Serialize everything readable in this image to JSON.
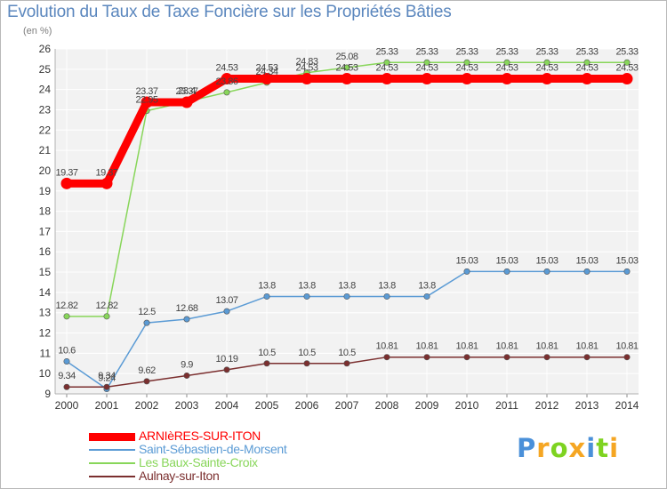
{
  "chart_data": {
    "type": "line",
    "title": "Evolution du Taux de Taxe Foncière sur les Propriétés Bâties",
    "subtitle": "(en %)",
    "xlabel": "",
    "ylabel": "(en %)",
    "ylim": [
      9,
      26
    ],
    "yticks": [
      "9",
      "10",
      "11",
      "12",
      "13",
      "14",
      "15",
      "16",
      "17",
      "18",
      "19",
      "20",
      "21",
      "22",
      "23",
      "24",
      "25",
      "26"
    ],
    "categories": [
      "2000",
      "2001",
      "2002",
      "2003",
      "2004",
      "2005",
      "2006",
      "2007",
      "2008",
      "2009",
      "2010",
      "2011",
      "2012",
      "2013",
      "2014"
    ],
    "grid": true,
    "legend_position": "bottom-left",
    "series": [
      {
        "name": "ARNIèRES-SUR-ITON",
        "color": "#ff0000",
        "values": [
          19.37,
          19.37,
          23.37,
          23.37,
          24.53,
          24.53,
          24.53,
          24.53,
          24.53,
          24.53,
          24.53,
          24.53,
          24.53,
          24.53,
          24.53
        ],
        "labels": [
          "19.37",
          "19.37",
          "23.37",
          "23.37",
          "24.53",
          "24.53",
          "24.53",
          "24.53",
          "24.53",
          "24.53",
          "24.53",
          "24.53",
          "24.53",
          "24.53",
          "24.53"
        ]
      },
      {
        "name": "Saint-Sébastien-de-Morsent",
        "color": "#5b9bd5",
        "values": [
          10.6,
          9.24,
          12.5,
          12.68,
          13.07,
          13.8,
          13.8,
          13.8,
          13.8,
          13.8,
          15.03,
          15.03,
          15.03,
          15.03,
          15.03
        ],
        "labels": [
          "10.6",
          "9.24",
          "12.5",
          "12.68",
          "13.07",
          "13.8",
          "13.8",
          "13.8",
          "13.8",
          "13.8",
          "15.03",
          "15.03",
          "15.03",
          "15.03",
          "15.03"
        ]
      },
      {
        "name": "Les Baux-Sainte-Croix",
        "color": "#88d65a",
        "values": [
          12.82,
          12.82,
          22.95,
          23.4,
          23.86,
          24.34,
          24.83,
          25.08,
          25.33,
          25.33,
          25.33,
          25.33,
          25.33,
          25.33,
          25.33
        ],
        "labels": [
          "12.82",
          "12.82",
          "22.95",
          "23.4",
          "23.86",
          "24.34",
          "24.83",
          "25.08",
          "25.33",
          "25.33",
          "25.33",
          "25.33",
          "25.33",
          "25.33",
          "25.33"
        ]
      },
      {
        "name": "Aulnay-sur-Iton",
        "color": "#7b2f2f",
        "values": [
          9.34,
          9.34,
          9.62,
          9.9,
          10.19,
          10.5,
          10.5,
          10.5,
          10.81,
          10.81,
          10.81,
          10.81,
          10.81,
          10.81,
          10.81
        ],
        "labels": [
          "9.34",
          "9.34",
          "9.62",
          "9.9",
          "10.19",
          "10.5",
          "10.5",
          "10.5",
          "10.81",
          "10.81",
          "10.81",
          "10.81",
          "10.81",
          "10.81",
          "10.81"
        ]
      }
    ]
  },
  "logo": {
    "letters": [
      "P",
      "r",
      "o",
      "x",
      "i",
      "t",
      "i"
    ],
    "colors": [
      "#4a90d9",
      "#f5a623",
      "#7ed321",
      "#f5a623",
      "#4a90d9",
      "#7ed321",
      "#f5a623"
    ]
  }
}
